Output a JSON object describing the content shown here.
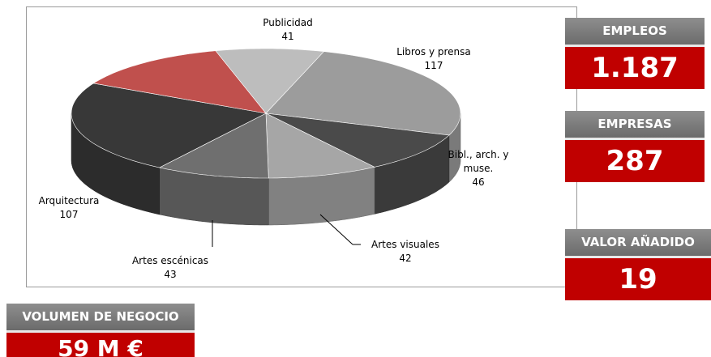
{
  "chart_data": {
    "type": "pie",
    "style": "3d",
    "categories": [
      "Publicidad",
      "Libros y prensa",
      "Bibl., arch. y muse.",
      "Artes visuales",
      "Artes escénicas",
      "Arquitectura",
      null
    ],
    "values": [
      41,
      117,
      46,
      42,
      43,
      107,
      60
    ],
    "colors": [
      "#bdbdbd",
      "#9c9c9c",
      "#4a4a4a",
      "#a6a6a6",
      "#6f6f6f",
      "#383838",
      "#c0504d"
    ]
  },
  "kpis": [
    {
      "label": "EMPLEOS",
      "value": "1.187"
    },
    {
      "label": "EMPRESAS",
      "value": "287"
    },
    {
      "label": "VALOR AÑADIDO",
      "value": "19"
    },
    {
      "label": "VOLUMEN DE NEGOCIO",
      "value": "59 M €"
    }
  ]
}
